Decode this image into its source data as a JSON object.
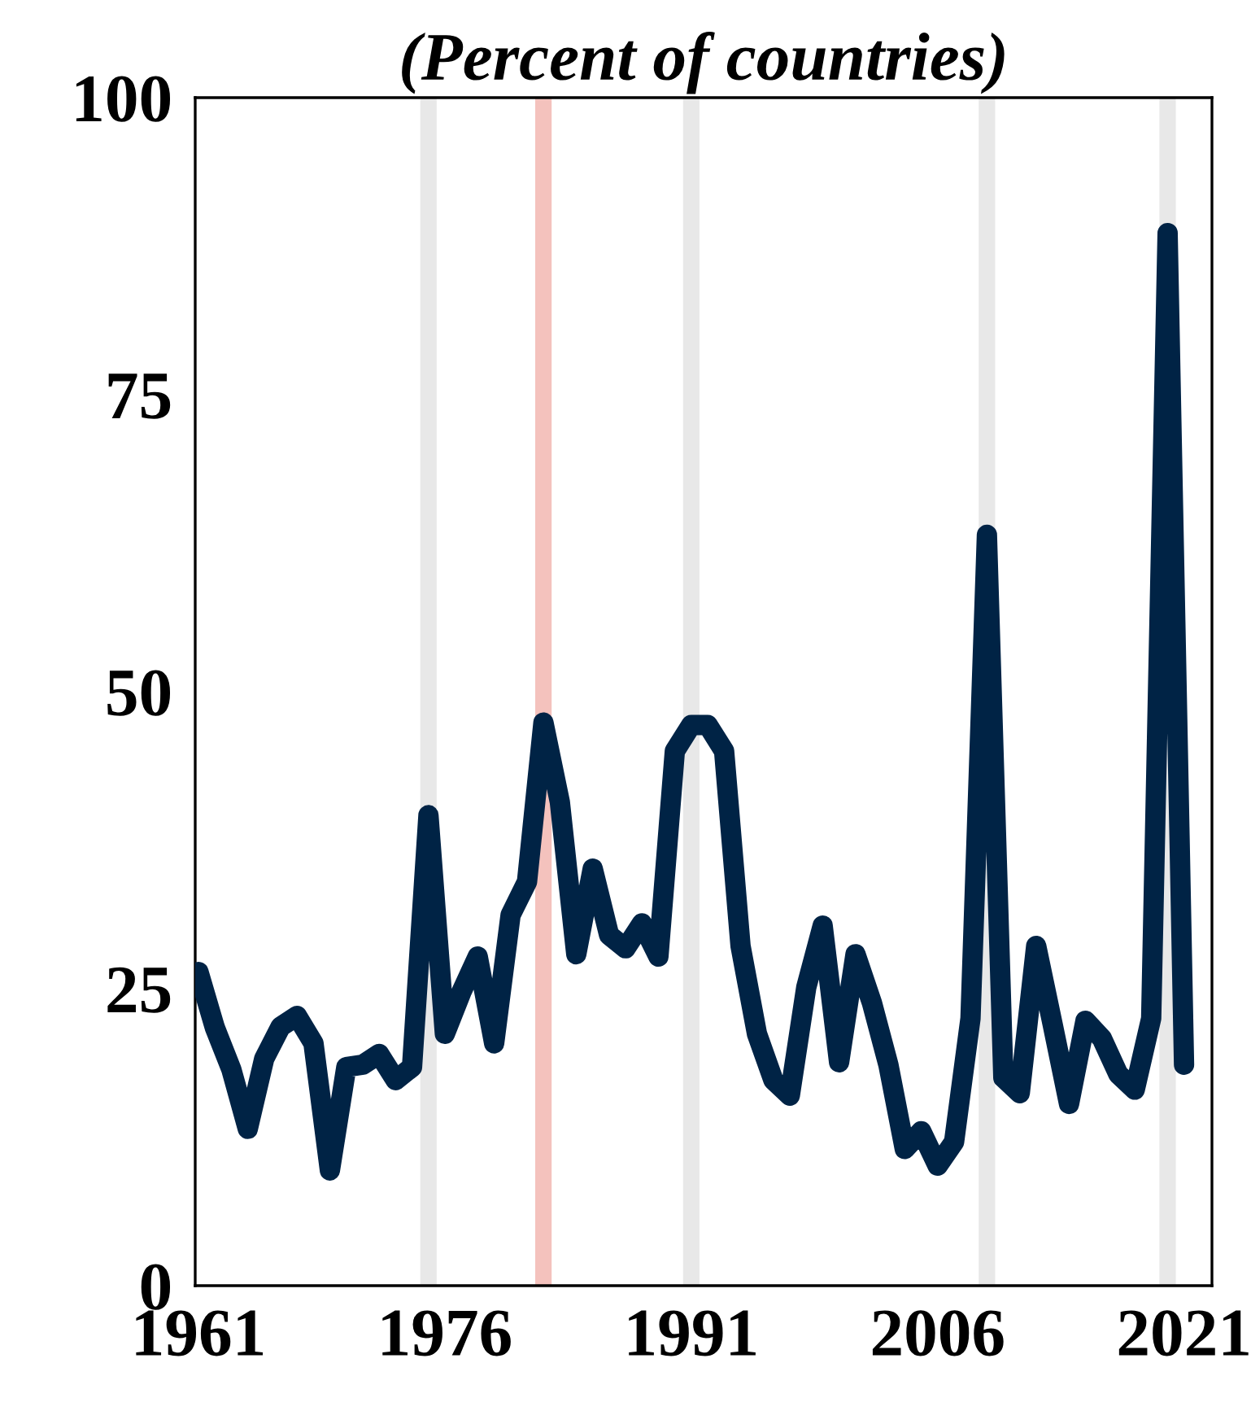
{
  "chart_data": {
    "type": "line",
    "subtitle": "(Percent of countries)",
    "x": [
      1961,
      1962,
      1963,
      1964,
      1965,
      1966,
      1967,
      1968,
      1969,
      1970,
      1971,
      1972,
      1973,
      1974,
      1975,
      1976,
      1977,
      1978,
      1979,
      1980,
      1981,
      1982,
      1983,
      1984,
      1985,
      1986,
      1987,
      1988,
      1989,
      1990,
      1991,
      1992,
      1993,
      1994,
      1995,
      1996,
      1997,
      1998,
      1999,
      2000,
      2001,
      2002,
      2003,
      2004,
      2005,
      2006,
      2007,
      2008,
      2009,
      2010,
      2011,
      2012,
      2013,
      2014,
      2015,
      2016,
      2017,
      2018,
      2019,
      2020,
      2021
    ],
    "series": [
      {
        "color": "#002345",
        "values": [
          26.4,
          21.7,
          18.2,
          13.2,
          19.1,
          21.8,
          22.7,
          20.4,
          9.7,
          18.4,
          18.6,
          19.5,
          17.3,
          18.4,
          39.6,
          21.2,
          24.7,
          27.7,
          20.4,
          31.2,
          34,
          47.4,
          40.7,
          27.9,
          35.1,
          29.5,
          28.4,
          30.5,
          27.7,
          45,
          47.2,
          47.2,
          45,
          28.6,
          21.2,
          17.3,
          16,
          25.1,
          30.3,
          18.8,
          27.9,
          23.8,
          18.6,
          11.5,
          13,
          10.1,
          12.1,
          22.5,
          63.2,
          17.5,
          16.2,
          28.6,
          22,
          15.3,
          22.3,
          20.8,
          17.8,
          16.5,
          22.5,
          88.6,
          18.6
        ]
      }
    ],
    "xlim": [
      1960.8,
      2022.7
    ],
    "xticks": [
      1961,
      1976,
      1991,
      2006,
      2021
    ],
    "ylim": [
      0,
      100
    ],
    "yticks": [
      0,
      25,
      50,
      75,
      100
    ],
    "bands": [
      {
        "axis": "x",
        "from": 1974.5,
        "to": 1975.5,
        "color": "#e8e8e8"
      },
      {
        "axis": "x",
        "from": 1981.5,
        "to": 1982.5,
        "color": "#f4c2bd"
      },
      {
        "axis": "x",
        "from": 1990.5,
        "to": 1991.5,
        "color": "#e8e8e8"
      },
      {
        "axis": "x",
        "from": 2008.5,
        "to": 2009.5,
        "color": "#e8e8e8"
      },
      {
        "axis": "x",
        "from": 2019.5,
        "to": 2020.5,
        "color": "#e8e8e8"
      }
    ],
    "grid": false,
    "line_style": "solid"
  }
}
